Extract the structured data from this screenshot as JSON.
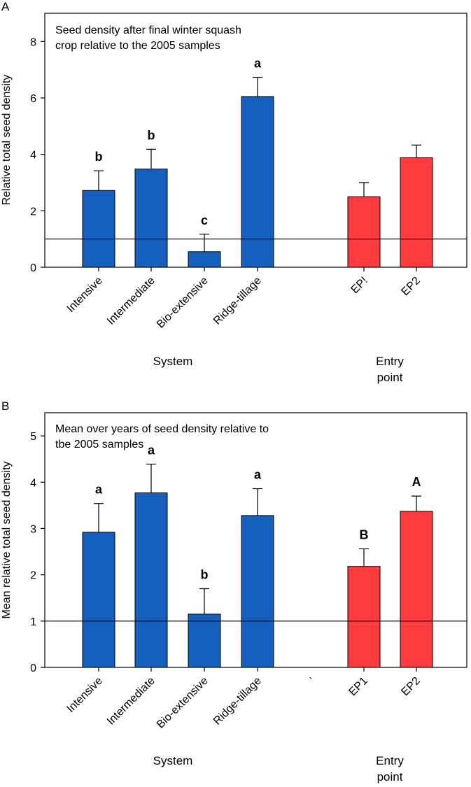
{
  "chart_data": [
    {
      "panel_label": "A",
      "type": "bar",
      "title_lines": [
        "Seed density after final winter squash",
        "crop relative to the 2005 samples"
      ],
      "ylabel": "Relative total seed density",
      "ylim": [
        0,
        9
      ],
      "yticks": [
        0,
        2,
        4,
        6,
        8
      ],
      "reference_line": 1,
      "colors": {
        "system": "#1560bd",
        "entry": "#ff3b3f"
      },
      "categories": [
        "Intensive",
        "Intermediate",
        "Bio-extensive",
        "Ridge-tillage",
        "EP!",
        "EP2"
      ],
      "groups": [
        "system",
        "system",
        "system",
        "system",
        "entry",
        "entry"
      ],
      "values": [
        2.72,
        3.48,
        0.55,
        6.05,
        2.5,
        3.88
      ],
      "errors": [
        0.7,
        0.7,
        0.62,
        0.68,
        0.5,
        0.45
      ],
      "significance": [
        "b",
        "b",
        "c",
        "a",
        "",
        ""
      ],
      "extra_tick_label": "",
      "group_labels": {
        "system": [
          "System"
        ],
        "entry": [
          "Entry",
          "point"
        ]
      }
    },
    {
      "panel_label": "B",
      "type": "bar",
      "title_lines": [
        "Mean over years of seed density relative to",
        "tbe 2005 samples"
      ],
      "ylabel": "Mean relative total seed density",
      "ylim": [
        0,
        5.5
      ],
      "yticks": [
        0,
        1,
        2,
        3,
        4,
        5
      ],
      "reference_line": 1,
      "colors": {
        "system": "#1560bd",
        "entry": "#ff3b3f"
      },
      "categories": [
        "Intensive",
        "Intermediate",
        "Bio-extensive",
        "Ridge-tillage",
        "EP1",
        "EP2"
      ],
      "groups": [
        "system",
        "system",
        "system",
        "system",
        "entry",
        "entry"
      ],
      "values": [
        2.92,
        3.77,
        1.15,
        3.28,
        2.18,
        3.37
      ],
      "errors": [
        0.62,
        0.62,
        0.55,
        0.58,
        0.38,
        0.33
      ],
      "significance": [
        "a",
        "a",
        "b",
        "a",
        "B",
        "A"
      ],
      "extra_tick_label": "`",
      "group_labels": {
        "system": [
          "System"
        ],
        "entry": [
          "Entry",
          "point"
        ]
      }
    }
  ]
}
